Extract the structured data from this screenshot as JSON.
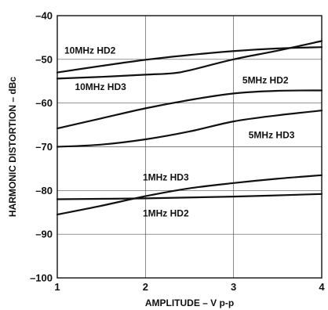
{
  "chart_data": {
    "type": "line",
    "xlabel": "AMPLITUDE – V p-p",
    "ylabel": "HARMONIC DISTORTION – dBc",
    "xlim": [
      1,
      4
    ],
    "ylim": [
      -100,
      -40
    ],
    "xticks": [
      1,
      2,
      3,
      4
    ],
    "yticks": [
      -40,
      -50,
      -60,
      -70,
      -80,
      -90,
      -100
    ],
    "grid": true,
    "legend": "inline labels",
    "series": [
      {
        "name": "10MHz HD2",
        "x": [
          1,
          1.5,
          2,
          2.5,
          3,
          3.5,
          4
        ],
        "y": [
          -53,
          -51.5,
          -50.1,
          -49,
          -48.1,
          -47.5,
          -47.2
        ]
      },
      {
        "name": "10MHz HD3",
        "x": [
          1,
          1.5,
          2,
          2.3,
          2.5,
          3,
          3.5,
          4
        ],
        "y": [
          -54.4,
          -54,
          -53.5,
          -53.2,
          -52.5,
          -50,
          -48,
          -45.8
        ]
      },
      {
        "name": "5MHz HD2",
        "x": [
          1,
          1.5,
          2,
          2.5,
          3,
          3.5,
          4
        ],
        "y": [
          -65.8,
          -63.5,
          -61.2,
          -59.3,
          -57.8,
          -57.2,
          -57.1
        ]
      },
      {
        "name": "5MHz HD3",
        "x": [
          1,
          1.5,
          2,
          2.5,
          3,
          3.5,
          4
        ],
        "y": [
          -70,
          -69.5,
          -68.3,
          -66.5,
          -64.2,
          -62.8,
          -61.7
        ]
      },
      {
        "name": "1MHz HD3",
        "x": [
          1,
          1.5,
          2,
          2.5,
          3,
          3.5,
          4
        ],
        "y": [
          -85.5,
          -83.5,
          -81.3,
          -79.5,
          -78.3,
          -77.3,
          -76.5
        ]
      },
      {
        "name": "1MHz HD2",
        "x": [
          1,
          2,
          3,
          4
        ],
        "y": [
          -82,
          -81.8,
          -81.4,
          -80.8
        ]
      }
    ],
    "label_anchors": [
      {
        "name": "10MHz HD2",
        "x": 1.08,
        "y": -48.7
      },
      {
        "name": "10MHz HD3",
        "x": 1.2,
        "y": -57.0
      },
      {
        "name": "5MHz HD2",
        "x": 3.1,
        "y": -55.5
      },
      {
        "name": "5MHz HD3",
        "x": 3.17,
        "y": -68.0
      },
      {
        "name": "1MHz HD3",
        "x": 1.97,
        "y": -77.7
      },
      {
        "name": "1MHz HD2",
        "x": 1.97,
        "y": -85.9
      }
    ]
  }
}
